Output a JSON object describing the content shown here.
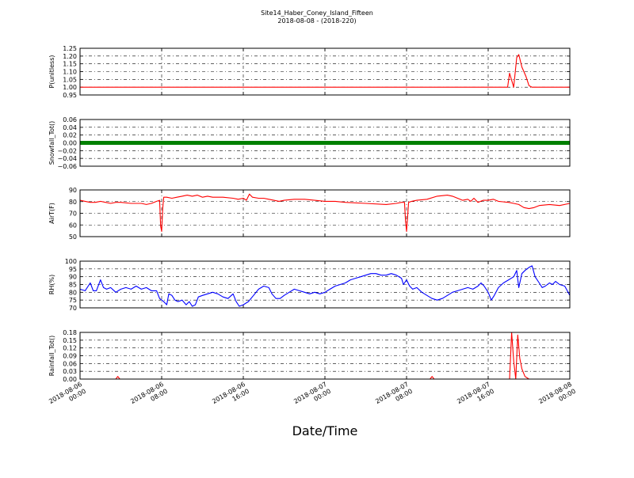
{
  "chart_data": {
    "type": "line",
    "title": "Site14_Haber_Coney_Island_Fifteen",
    "subtitle": "2018-08-08 - (2018-220)",
    "xlabel": "Date/Time",
    "x_range": [
      "2018-08-06 00:00",
      "2018-08-08 00:00"
    ],
    "x_ticks": [
      {
        "label_line1": "2018-08-06",
        "label_line2": "00:00",
        "hours": 0
      },
      {
        "label_line1": "2018-08-06",
        "label_line2": "08:00",
        "hours": 8
      },
      {
        "label_line1": "2018-08-06",
        "label_line2": "16:00",
        "hours": 16
      },
      {
        "label_line1": "2018-08-07",
        "label_line2": "00:00",
        "hours": 24
      },
      {
        "label_line1": "2018-08-07",
        "label_line2": "08:00",
        "hours": 32
      },
      {
        "label_line1": "2018-08-07",
        "label_line2": "16:00",
        "hours": 40
      },
      {
        "label_line1": "2018-08-08",
        "label_line2": "00:00",
        "hours": 48
      }
    ],
    "grid": true,
    "panels": [
      {
        "ylabel": "P(unitless)",
        "color": "#ff0000",
        "ylim": [
          0.95,
          1.25
        ],
        "yticks": [
          "0.95",
          "1.00",
          "1.05",
          "1.10",
          "1.15",
          "1.20",
          "1.25"
        ],
        "points": [
          [
            0,
            1.0
          ],
          [
            41.9,
            1.0
          ],
          [
            42.1,
            1.09
          ],
          [
            42.5,
            1.0
          ],
          [
            42.8,
            1.19
          ],
          [
            43.0,
            1.21
          ],
          [
            43.3,
            1.13
          ],
          [
            43.7,
            1.07
          ],
          [
            44.0,
            1.01
          ],
          [
            44.3,
            1.0
          ],
          [
            48,
            1.0
          ]
        ]
      },
      {
        "ylabel": "Snowfall_Tot()",
        "color": "#008000",
        "ylim": [
          -0.06,
          0.06
        ],
        "yticks": [
          "−0.06",
          "−0.04",
          "−0.02",
          "0.00",
          "0.02",
          "0.04",
          "0.06"
        ],
        "markers": true,
        "points": [
          [
            0,
            0
          ],
          [
            48,
            0
          ]
        ]
      },
      {
        "ylabel": "AirT(F)",
        "color": "#ff0000",
        "ylim": [
          45,
          90
        ],
        "yticks": [
          "50",
          "60",
          "70",
          "80",
          "90"
        ],
        "points": [
          [
            0,
            80
          ],
          [
            0.5,
            79
          ],
          [
            1,
            78
          ],
          [
            1.5,
            78
          ],
          [
            2,
            79
          ],
          [
            2.5,
            78
          ],
          [
            3,
            77
          ],
          [
            3.5,
            78
          ],
          [
            4,
            78
          ],
          [
            5,
            77
          ],
          [
            6,
            77
          ],
          [
            6.5,
            76
          ],
          [
            7,
            77
          ],
          [
            7.5,
            79
          ],
          [
            7.8,
            80
          ],
          [
            7.9,
            55
          ],
          [
            8.0,
            50
          ],
          [
            8.1,
            72
          ],
          [
            8.2,
            83
          ],
          [
            8.5,
            83
          ],
          [
            9,
            82
          ],
          [
            9.5,
            83
          ],
          [
            10,
            84
          ],
          [
            10.5,
            85
          ],
          [
            11,
            84
          ],
          [
            11.5,
            85
          ],
          [
            12,
            83
          ],
          [
            12.5,
            84
          ],
          [
            13,
            83
          ],
          [
            14,
            83
          ],
          [
            15,
            82
          ],
          [
            15.5,
            81
          ],
          [
            16,
            82
          ],
          [
            16.3,
            80
          ],
          [
            16.6,
            86
          ],
          [
            16.9,
            83
          ],
          [
            17.5,
            82
          ],
          [
            18,
            82
          ],
          [
            18.5,
            81
          ],
          [
            19,
            80
          ],
          [
            19.5,
            79
          ],
          [
            20,
            80
          ],
          [
            21,
            81
          ],
          [
            22,
            81
          ],
          [
            23,
            80
          ],
          [
            24,
            79
          ],
          [
            25,
            79
          ],
          [
            26,
            78
          ],
          [
            28,
            77
          ],
          [
            30,
            76
          ],
          [
            31,
            77
          ],
          [
            31.5,
            78
          ],
          [
            31.8,
            78
          ],
          [
            31.9,
            60
          ],
          [
            32.0,
            50
          ],
          [
            32.2,
            78
          ],
          [
            32.5,
            79
          ],
          [
            33,
            80
          ],
          [
            34,
            81
          ],
          [
            35,
            84
          ],
          [
            36,
            85
          ],
          [
            36.5,
            84
          ],
          [
            37,
            82
          ],
          [
            37.5,
            80
          ],
          [
            38,
            81
          ],
          [
            38.3,
            79
          ],
          [
            38.6,
            82
          ],
          [
            39,
            78
          ],
          [
            39.5,
            80
          ],
          [
            40,
            80
          ],
          [
            40.5,
            81
          ],
          [
            41,
            79
          ],
          [
            42,
            78
          ],
          [
            42.5,
            77
          ],
          [
            43,
            76
          ],
          [
            43.5,
            73
          ],
          [
            44,
            72
          ],
          [
            44.5,
            73
          ],
          [
            45,
            75
          ],
          [
            46,
            76
          ],
          [
            47,
            75
          ],
          [
            48,
            77
          ]
        ]
      },
      {
        "ylabel": "RH(%)",
        "color": "#0000ff",
        "ylim": [
          70,
          100
        ],
        "yticks": [
          "70",
          "75",
          "80",
          "85",
          "90",
          "95",
          "100"
        ],
        "points": [
          [
            0,
            82
          ],
          [
            0.5,
            81
          ],
          [
            1,
            86
          ],
          [
            1.3,
            81
          ],
          [
            1.6,
            81
          ],
          [
            2,
            88
          ],
          [
            2.3,
            83
          ],
          [
            2.6,
            82
          ],
          [
            3,
            83
          ],
          [
            3.5,
            80
          ],
          [
            4,
            82
          ],
          [
            4.5,
            83
          ],
          [
            5,
            82
          ],
          [
            5.5,
            84
          ],
          [
            6,
            82
          ],
          [
            6.5,
            83
          ],
          [
            7,
            81
          ],
          [
            7.5,
            81
          ],
          [
            7.8,
            76
          ],
          [
            8.2,
            74
          ],
          [
            8.5,
            72
          ],
          [
            8.7,
            79
          ],
          [
            9,
            78
          ],
          [
            9.3,
            75
          ],
          [
            9.6,
            74
          ],
          [
            10,
            75
          ],
          [
            10.4,
            72
          ],
          [
            10.7,
            74
          ],
          [
            11,
            71
          ],
          [
            11.3,
            72
          ],
          [
            11.6,
            77
          ],
          [
            12,
            78
          ],
          [
            12.5,
            79
          ],
          [
            13,
            80
          ],
          [
            13.5,
            79
          ],
          [
            14,
            77
          ],
          [
            14.5,
            76
          ],
          [
            15,
            79
          ],
          [
            15.3,
            74
          ],
          [
            15.6,
            71
          ],
          [
            16,
            72
          ],
          [
            16.5,
            74
          ],
          [
            17,
            78
          ],
          [
            17.5,
            82
          ],
          [
            18,
            84
          ],
          [
            18.5,
            83
          ],
          [
            18.8,
            79
          ],
          [
            19.2,
            76
          ],
          [
            19.6,
            76
          ],
          [
            20,
            78
          ],
          [
            20.5,
            80
          ],
          [
            21,
            82
          ],
          [
            21.5,
            81
          ],
          [
            22,
            80
          ],
          [
            22.5,
            79
          ],
          [
            23,
            80
          ],
          [
            23.5,
            79
          ],
          [
            24,
            80
          ],
          [
            24.5,
            82
          ],
          [
            25,
            84
          ],
          [
            25.5,
            85
          ],
          [
            26,
            86
          ],
          [
            26.5,
            88
          ],
          [
            27,
            89
          ],
          [
            27.5,
            90
          ],
          [
            28,
            91
          ],
          [
            28.5,
            92
          ],
          [
            29,
            92
          ],
          [
            29.5,
            91
          ],
          [
            30,
            91
          ],
          [
            30.5,
            92
          ],
          [
            31,
            91
          ],
          [
            31.5,
            89
          ],
          [
            31.7,
            85
          ],
          [
            32,
            88
          ],
          [
            32.3,
            84
          ],
          [
            32.6,
            82
          ],
          [
            33,
            83
          ],
          [
            33.5,
            80
          ],
          [
            34,
            78
          ],
          [
            34.5,
            76
          ],
          [
            35,
            75
          ],
          [
            35.5,
            76
          ],
          [
            36,
            78
          ],
          [
            36.5,
            80
          ],
          [
            37,
            81
          ],
          [
            37.5,
            82
          ],
          [
            38,
            83
          ],
          [
            38.5,
            82
          ],
          [
            39,
            84
          ],
          [
            39.3,
            86
          ],
          [
            39.6,
            84
          ],
          [
            40,
            80
          ],
          [
            40.3,
            75
          ],
          [
            40.6,
            78
          ],
          [
            41,
            83
          ],
          [
            41.5,
            86
          ],
          [
            42,
            88
          ],
          [
            42.5,
            90
          ],
          [
            42.8,
            94
          ],
          [
            43.0,
            83
          ],
          [
            43.3,
            92
          ],
          [
            43.6,
            94
          ],
          [
            44,
            96
          ],
          [
            44.3,
            97
          ],
          [
            44.6,
            90
          ],
          [
            45,
            86
          ],
          [
            45.3,
            83
          ],
          [
            45.6,
            84
          ],
          [
            46,
            86
          ],
          [
            46.3,
            85
          ],
          [
            46.6,
            87
          ],
          [
            47,
            85
          ],
          [
            47.5,
            84
          ],
          [
            48,
            78
          ]
        ]
      },
      {
        "ylabel": "Rainfall_Tot()",
        "color": "#ff0000",
        "ylim": [
          0.0,
          0.18
        ],
        "yticks": [
          "0.00",
          "0.03",
          "0.06",
          "0.09",
          "0.12",
          "0.15",
          "0.18"
        ],
        "points": [
          [
            0,
            0
          ],
          [
            3.5,
            0
          ],
          [
            3.7,
            0.01
          ],
          [
            3.9,
            0
          ],
          [
            34.3,
            0
          ],
          [
            34.5,
            0.01
          ],
          [
            34.7,
            0
          ],
          [
            42.1,
            0
          ],
          [
            42.3,
            0.18
          ],
          [
            42.5,
            0.07
          ],
          [
            42.7,
            0
          ],
          [
            42.9,
            0.17
          ],
          [
            43.1,
            0.08
          ],
          [
            43.3,
            0.04
          ],
          [
            43.6,
            0.01
          ],
          [
            44,
            0
          ],
          [
            48,
            0
          ]
        ]
      }
    ]
  }
}
